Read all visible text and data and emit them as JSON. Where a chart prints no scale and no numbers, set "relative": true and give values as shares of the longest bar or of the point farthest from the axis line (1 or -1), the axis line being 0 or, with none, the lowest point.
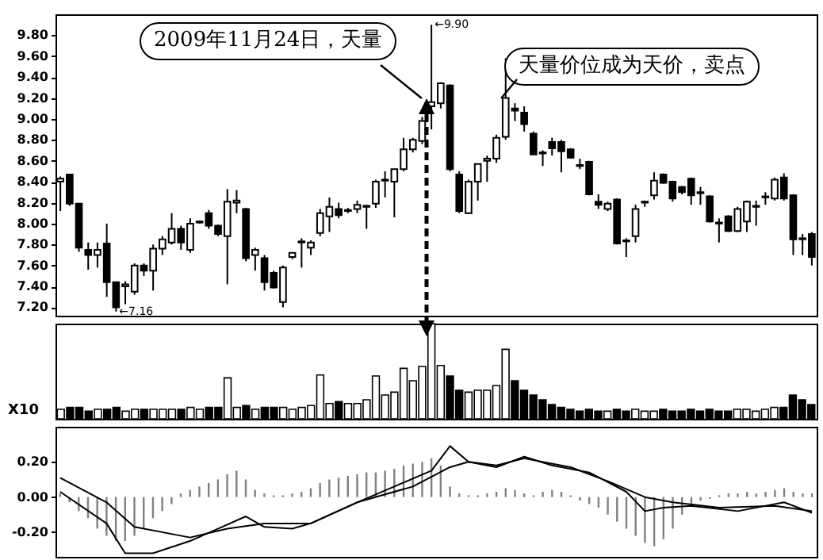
{
  "chart_data": [
    {
      "type": "candlestick",
      "categories": [
        null,
        null,
        null,
        null,
        null,
        null,
        null,
        null,
        null,
        null,
        null,
        null,
        null,
        null,
        null,
        null,
        null,
        null,
        null,
        null,
        null,
        null,
        null,
        null,
        null,
        null,
        null,
        null,
        null,
        null,
        null,
        null,
        null,
        null,
        null,
        null,
        null,
        null,
        null,
        null,
        null,
        null,
        null,
        null,
        null,
        null,
        null,
        null,
        null,
        null,
        null,
        null,
        null,
        null,
        null,
        null,
        null,
        null,
        null,
        null,
        null,
        null,
        null,
        null,
        null,
        null,
        null,
        null,
        null,
        null,
        null,
        null,
        null,
        null,
        null,
        null,
        null,
        null,
        null,
        null,
        null,
        null
      ],
      "ohlc": [
        [
          8.4,
          8.45,
          8.12,
          8.43
        ],
        [
          8.47,
          8.47,
          8.17,
          8.19
        ],
        [
          8.19,
          8.19,
          7.73,
          7.77
        ],
        [
          7.75,
          7.82,
          7.56,
          7.7
        ],
        [
          7.7,
          7.82,
          7.58,
          7.75
        ],
        [
          7.81,
          8.0,
          7.3,
          7.44
        ],
        [
          7.44,
          7.44,
          7.16,
          7.2
        ],
        [
          7.4,
          7.45,
          7.23,
          7.42
        ],
        [
          7.35,
          7.62,
          7.32,
          7.6
        ],
        [
          7.6,
          7.62,
          7.5,
          7.55
        ],
        [
          7.55,
          7.8,
          7.36,
          7.76
        ],
        [
          7.76,
          7.88,
          7.7,
          7.85
        ],
        [
          7.82,
          8.1,
          7.8,
          7.95
        ],
        [
          7.95,
          7.98,
          7.75,
          7.82
        ],
        [
          7.75,
          8.05,
          7.72,
          8.0
        ],
        [
          8.01,
          8.03,
          8.0,
          8.02
        ],
        [
          8.1,
          8.13,
          7.95,
          7.98
        ],
        [
          7.98,
          7.99,
          7.88,
          7.9
        ],
        [
          7.88,
          8.33,
          7.42,
          8.21
        ],
        [
          8.2,
          8.32,
          8.1,
          8.22
        ],
        [
          8.14,
          8.15,
          7.64,
          7.67
        ],
        [
          7.7,
          7.77,
          7.55,
          7.75
        ],
        [
          7.67,
          7.7,
          7.36,
          7.44
        ],
        [
          7.53,
          7.55,
          7.38,
          7.39
        ],
        [
          7.25,
          7.6,
          7.2,
          7.58
        ],
        [
          7.68,
          7.72,
          7.66,
          7.72
        ],
        [
          7.82,
          7.86,
          7.58,
          7.83
        ],
        [
          7.77,
          7.84,
          7.7,
          7.82
        ],
        [
          7.91,
          8.14,
          7.88,
          8.1
        ],
        [
          8.07,
          8.25,
          7.92,
          8.16
        ],
        [
          8.14,
          8.2,
          8.05,
          8.08
        ],
        [
          8.12,
          8.15,
          8.1,
          8.13
        ],
        [
          8.14,
          8.22,
          8.1,
          8.18
        ],
        [
          8.16,
          8.18,
          7.95,
          8.17
        ],
        [
          8.19,
          8.42,
          8.15,
          8.4
        ],
        [
          8.41,
          8.5,
          8.25,
          8.42
        ],
        [
          8.4,
          8.52,
          8.06,
          8.52
        ],
        [
          8.52,
          8.82,
          8.5,
          8.71
        ],
        [
          8.71,
          8.82,
          8.68,
          8.8
        ],
        [
          8.79,
          9.02,
          8.76,
          8.98
        ],
        [
          9.12,
          9.9,
          8.9,
          9.16
        ],
        [
          9.15,
          9.35,
          9.1,
          9.34
        ],
        [
          9.32,
          9.33,
          8.5,
          8.52
        ],
        [
          8.47,
          8.5,
          8.1,
          8.12
        ],
        [
          8.1,
          8.42,
          8.09,
          8.4
        ],
        [
          8.4,
          8.57,
          8.22,
          8.57
        ],
        [
          8.6,
          8.65,
          8.4,
          8.62
        ],
        [
          8.62,
          8.85,
          8.58,
          8.82
        ],
        [
          8.83,
          9.58,
          8.8,
          9.2
        ],
        [
          9.1,
          9.15,
          8.98,
          9.08
        ],
        [
          9.06,
          9.12,
          8.88,
          8.95
        ],
        [
          8.86,
          8.88,
          8.66,
          8.66
        ],
        [
          8.68,
          8.7,
          8.55,
          8.67
        ],
        [
          8.78,
          8.82,
          8.65,
          8.72
        ],
        [
          8.78,
          8.8,
          8.49,
          8.69
        ],
        [
          8.71,
          8.72,
          8.62,
          8.63
        ],
        [
          8.56,
          8.62,
          8.52,
          8.55
        ],
        [
          8.59,
          8.6,
          8.27,
          8.28
        ],
        [
          8.21,
          8.28,
          8.14,
          8.18
        ],
        [
          8.14,
          8.21,
          8.12,
          8.19
        ],
        [
          8.23,
          8.24,
          7.8,
          7.81
        ],
        [
          7.84,
          7.86,
          7.68,
          7.83
        ],
        [
          7.88,
          8.18,
          7.82,
          8.14
        ],
        [
          8.2,
          8.22,
          8.16,
          8.21
        ],
        [
          8.27,
          8.49,
          8.23,
          8.41
        ],
        [
          8.47,
          8.48,
          8.38,
          8.39
        ],
        [
          8.4,
          8.41,
          8.21,
          8.24
        ],
        [
          8.35,
          8.36,
          8.28,
          8.3
        ],
        [
          8.43,
          8.44,
          8.18,
          8.27
        ],
        [
          8.3,
          8.35,
          8.18,
          8.29
        ],
        [
          8.26,
          8.27,
          8.01,
          8.02
        ],
        [
          8.01,
          8.05,
          7.82,
          8.0
        ],
        [
          8.07,
          8.08,
          7.92,
          7.93
        ],
        [
          7.93,
          8.16,
          7.92,
          8.14
        ],
        [
          8.02,
          8.22,
          7.92,
          8.21
        ],
        [
          8.16,
          8.22,
          7.98,
          8.17
        ],
        [
          8.25,
          8.3,
          8.18,
          8.26
        ],
        [
          8.24,
          8.44,
          8.22,
          8.42
        ],
        [
          8.44,
          8.48,
          8.22,
          8.24
        ],
        [
          8.27,
          8.28,
          7.7,
          7.85
        ],
        [
          7.86,
          7.9,
          7.7,
          7.85
        ],
        [
          7.9,
          7.92,
          7.6,
          7.68
        ]
      ],
      "ylim": [
        7.12,
        10.0
      ],
      "yticks": [
        {
          "value": 7.2,
          "label": "7.20"
        },
        {
          "value": 7.4,
          "label": "7.40"
        },
        {
          "value": 7.6,
          "label": "7.60"
        },
        {
          "value": 7.8,
          "label": "7.80"
        },
        {
          "value": 8.0,
          "label": "8.00"
        },
        {
          "value": 8.2,
          "label": "8.20"
        },
        {
          "value": 8.4,
          "label": "8.40"
        },
        {
          "value": 8.6,
          "label": "8.60"
        },
        {
          "value": 8.8,
          "label": "8.80"
        },
        {
          "value": 9.0,
          "label": "9.00"
        },
        {
          "value": 9.2,
          "label": "9.20"
        },
        {
          "value": 9.4,
          "label": "9.40"
        },
        {
          "value": 9.6,
          "label": "9.60"
        },
        {
          "value": 9.8,
          "label": "9.80"
        }
      ],
      "tick_labels": "y",
      "annotations": [
        "2009年11月24日，天量",
        "天量价位成为天价，卖点",
        "←9.90",
        "←7.16"
      ]
    },
    {
      "type": "bar",
      "relative": true,
      "categories": [
        null,
        null,
        null,
        null,
        null,
        null,
        null,
        null,
        null,
        null,
        null,
        null,
        null,
        null,
        null,
        null,
        null,
        null,
        null,
        null,
        null,
        null,
        null,
        null,
        null,
        null,
        null,
        null,
        null,
        null,
        null,
        null,
        null,
        null,
        null,
        null,
        null,
        null,
        null,
        null,
        null,
        null,
        null,
        null,
        null,
        null,
        null,
        null,
        null,
        null,
        null,
        null,
        null,
        null,
        null,
        null,
        null,
        null,
        null,
        null,
        null,
        null,
        null,
        null,
        null,
        null,
        null,
        null,
        null,
        null,
        null,
        null,
        null,
        null,
        null,
        null,
        null,
        null,
        null,
        null,
        null,
        null
      ],
      "values": [
        0.1,
        0.12,
        0.12,
        0.08,
        0.1,
        0.1,
        0.12,
        0.08,
        0.1,
        0.1,
        0.1,
        0.1,
        0.1,
        0.1,
        0.12,
        0.1,
        0.12,
        0.12,
        0.43,
        0.12,
        0.14,
        0.1,
        0.12,
        0.12,
        0.12,
        0.1,
        0.12,
        0.14,
        0.46,
        0.16,
        0.18,
        0.16,
        0.16,
        0.2,
        0.45,
        0.25,
        0.28,
        0.53,
        0.4,
        0.55,
        1.0,
        0.56,
        0.45,
        0.3,
        0.28,
        0.3,
        0.3,
        0.35,
        0.73,
        0.4,
        0.3,
        0.25,
        0.2,
        0.15,
        0.12,
        0.1,
        0.08,
        0.1,
        0.08,
        0.08,
        0.1,
        0.08,
        0.1,
        0.08,
        0.08,
        0.1,
        0.08,
        0.08,
        0.1,
        0.08,
        0.1,
        0.08,
        0.08,
        0.1,
        0.1,
        0.08,
        0.1,
        0.12,
        0.12,
        0.25,
        0.2,
        0.15
      ],
      "colors": [
        "#ffffff",
        "#000000",
        "#000000",
        "#000000",
        "#ffffff",
        "#000000",
        "#000000",
        "#ffffff",
        "#ffffff",
        "#000000",
        "#ffffff",
        "#ffffff",
        "#ffffff",
        "#000000",
        "#ffffff",
        "#ffffff",
        "#000000",
        "#000000",
        "#ffffff",
        "#ffffff",
        "#000000",
        "#ffffff",
        "#000000",
        "#000000",
        "#ffffff",
        "#ffffff",
        "#ffffff",
        "#ffffff",
        "#ffffff",
        "#ffffff",
        "#000000",
        "#ffffff",
        "#ffffff",
        "#ffffff",
        "#ffffff",
        "#ffffff",
        "#ffffff",
        "#ffffff",
        "#ffffff",
        "#ffffff",
        "#ffffff",
        "#ffffff",
        "#000000",
        "#000000",
        "#ffffff",
        "#ffffff",
        "#ffffff",
        "#ffffff",
        "#ffffff",
        "#000000",
        "#000000",
        "#000000",
        "#000000",
        "#000000",
        "#000000",
        "#000000",
        "#000000",
        "#000000",
        "#000000",
        "#ffffff",
        "#000000",
        "#000000",
        "#ffffff",
        "#ffffff",
        "#ffffff",
        "#000000",
        "#000000",
        "#000000",
        "#000000",
        "#000000",
        "#000000",
        "#000000",
        "#000000",
        "#ffffff",
        "#ffffff",
        "#ffffff",
        "#ffffff",
        "#ffffff",
        "#000000",
        "#000000",
        "#000000",
        "#000000"
      ],
      "tick_labels": false,
      "annotations": [
        "X10"
      ]
    },
    {
      "type": "line",
      "categories": [
        null,
        null,
        null,
        null,
        null,
        null,
        null,
        null,
        null,
        null,
        null,
        null,
        null,
        null,
        null,
        null,
        null,
        null,
        null,
        null,
        null,
        null,
        null,
        null,
        null,
        null,
        null,
        null,
        null,
        null,
        null,
        null,
        null,
        null,
        null,
        null,
        null,
        null,
        null,
        null,
        null,
        null,
        null,
        null,
        null,
        null,
        null,
        null,
        null,
        null,
        null,
        null,
        null,
        null,
        null,
        null,
        null,
        null,
        null,
        null,
        null,
        null,
        null,
        null,
        null,
        null,
        null,
        null,
        null,
        null,
        null,
        null,
        null,
        null,
        null,
        null,
        null,
        null,
        null,
        null,
        null,
        null
      ],
      "ylim": [
        -0.34,
        0.4
      ],
      "yticks": [
        {
          "value": -0.2,
          "label": "-0.20"
        },
        {
          "value": 0,
          "label": "0.00"
        },
        {
          "value": 0.2,
          "label": "0.20"
        }
      ],
      "tick_labels": "y",
      "series": [
        {
          "type": "bar",
          "color": "#808080",
          "values": [
            0.02,
            -0.03,
            -0.08,
            -0.12,
            -0.18,
            -0.22,
            -0.25,
            -0.25,
            -0.22,
            -0.18,
            -0.12,
            -0.08,
            -0.04,
            0.02,
            0.04,
            0.06,
            0.08,
            0.1,
            0.13,
            0.15,
            0.1,
            0.04,
            0.02,
            0.01,
            0.01,
            0.02,
            0.03,
            0.05,
            0.08,
            0.1,
            0.11,
            0.12,
            0.13,
            0.14,
            0.14,
            0.15,
            0.16,
            0.18,
            0.19,
            0.2,
            0.22,
            0.18,
            0.06,
            0.02,
            0.01,
            0.01,
            0.02,
            0.03,
            0.05,
            0.04,
            0.02,
            0.01,
            0.03,
            0.04,
            0.03,
            0.01,
            -0.02,
            -0.04,
            -0.06,
            -0.1,
            -0.14,
            -0.18,
            -0.22,
            -0.26,
            -0.28,
            -0.24,
            -0.18,
            -0.1,
            -0.05,
            -0.02,
            -0.01,
            0.01,
            0.02,
            0.02,
            0.03,
            0.02,
            0.03,
            0.04,
            0.05,
            0.03,
            0.02,
            0.02
          ]
        },
        {
          "type": "line",
          "color": "#000000",
          "values": [
            0.03,
            null,
            null,
            null,
            null,
            -0.15,
            null,
            -0.32,
            null,
            null,
            -0.32,
            null,
            null,
            null,
            -0.25,
            null,
            null,
            -0.18,
            null,
            null,
            -0.11,
            null,
            -0.17,
            null,
            null,
            -0.18,
            null,
            -0.15,
            null,
            null,
            null,
            null,
            -0.03,
            null,
            null,
            null,
            0.06,
            null,
            null,
            null,
            0.15,
            null,
            0.29,
            null,
            0.2,
            null,
            null,
            0.17,
            null,
            null,
            0.23,
            null,
            null,
            0.18,
            null,
            null,
            null,
            0.14,
            null,
            null,
            null,
            0.03,
            null,
            -0.08,
            null,
            -0.06,
            null,
            null,
            -0.05,
            null,
            null,
            null,
            null,
            -0.08,
            null,
            null,
            null,
            null,
            -0.03,
            null,
            null,
            -0.09
          ]
        },
        {
          "type": "line",
          "color": "#000000",
          "values": [
            0.11,
            null,
            null,
            null,
            null,
            -0.03,
            null,
            null,
            -0.17,
            null,
            null,
            null,
            null,
            null,
            -0.23,
            null,
            null,
            null,
            -0.18,
            null,
            null,
            null,
            -0.15,
            null,
            null,
            null,
            null,
            -0.15,
            null,
            null,
            null,
            null,
            -0.03,
            null,
            null,
            null,
            null,
            null,
            0.06,
            null,
            null,
            null,
            0.17,
            null,
            0.2,
            null,
            null,
            0.18,
            null,
            null,
            0.22,
            null,
            null,
            null,
            null,
            0.17,
            null,
            null,
            null,
            0.09,
            null,
            null,
            null,
            0.0,
            null,
            null,
            -0.03,
            null,
            null,
            null,
            null,
            -0.06,
            null,
            null,
            null,
            null,
            null,
            -0.05,
            null,
            null,
            null,
            -0.08
          ]
        }
      ]
    }
  ]
}
